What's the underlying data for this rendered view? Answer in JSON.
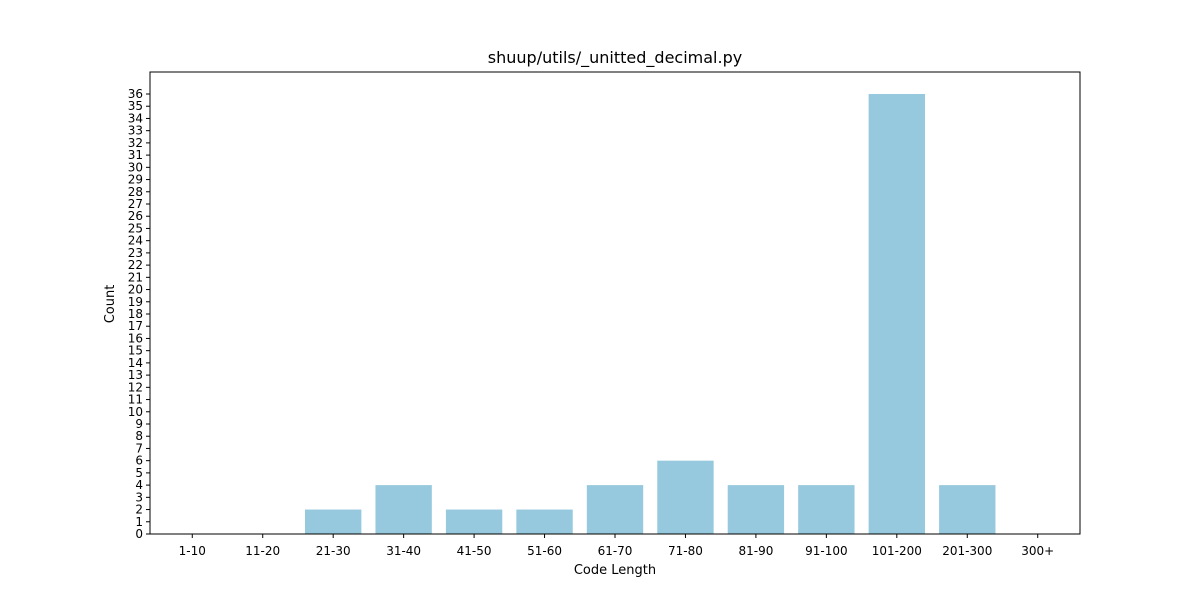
{
  "chart_data": {
    "type": "bar",
    "title": "shuup/utils/_unitted_decimal.py",
    "xlabel": "Code Length",
    "ylabel": "Count",
    "categories": [
      "1-10",
      "11-20",
      "21-30",
      "31-40",
      "41-50",
      "51-60",
      "61-70",
      "71-80",
      "81-90",
      "91-100",
      "101-200",
      "201-300",
      "300+"
    ],
    "values": [
      0,
      0,
      2,
      4,
      2,
      2,
      4,
      6,
      4,
      4,
      36,
      4,
      0
    ],
    "ylim": [
      0,
      37.8
    ],
    "yticks": [
      0,
      1,
      2,
      3,
      4,
      5,
      6,
      7,
      8,
      9,
      10,
      11,
      12,
      13,
      14,
      15,
      16,
      17,
      18,
      19,
      20,
      21,
      22,
      23,
      24,
      25,
      26,
      27,
      28,
      29,
      30,
      31,
      32,
      33,
      34,
      35,
      36
    ],
    "bar_color": "#96c9dd",
    "grid": false,
    "legend": "none"
  }
}
